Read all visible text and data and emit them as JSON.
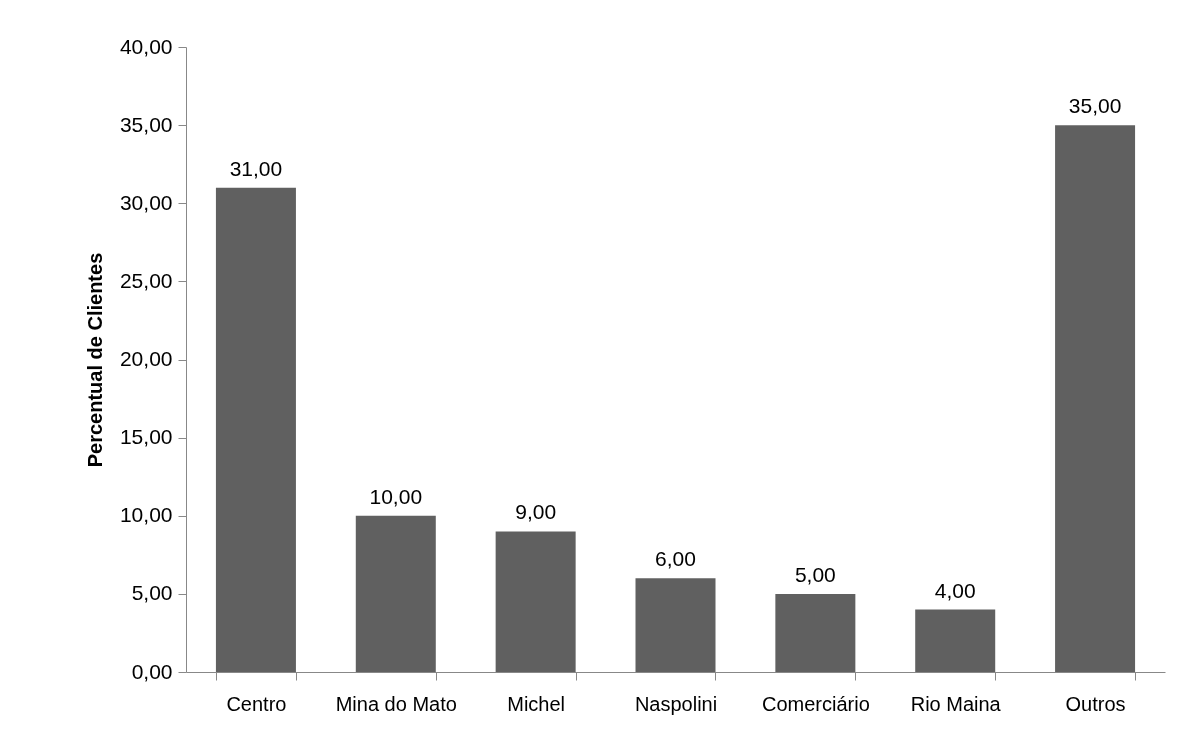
{
  "chart_data": {
    "type": "bar",
    "ylabel": "Percentual de Clientes",
    "categories": [
      "Centro",
      "Mina do Mato",
      "Michel",
      "Naspolini",
      "Comerciário",
      "Rio Maina",
      "Outros"
    ],
    "values": [
      31,
      10,
      9,
      6,
      5,
      4,
      35
    ],
    "value_labels": [
      "31,00",
      "10,00",
      "9,00",
      "6,00",
      "5,00",
      "4,00",
      "35,00"
    ],
    "color": "#606060",
    "ylim": [
      0,
      40
    ],
    "yticks": [
      {
        "value": 0,
        "label": "0,00"
      },
      {
        "value": 5,
        "label": "5,00"
      },
      {
        "value": 10,
        "label": "10,00"
      },
      {
        "value": 15,
        "label": "15,00"
      },
      {
        "value": 20,
        "label": "20,00"
      },
      {
        "value": 25,
        "label": "25,00"
      },
      {
        "value": 30,
        "label": "30,00"
      },
      {
        "value": 35,
        "label": "35,00"
      },
      {
        "value": 40,
        "label": "40,00"
      }
    ],
    "grid": false
  }
}
